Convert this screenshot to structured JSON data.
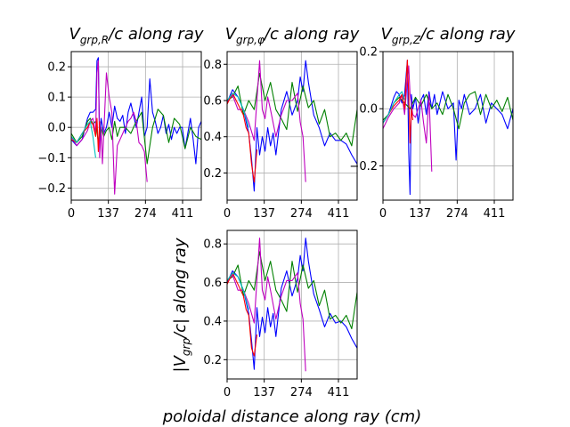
{
  "figure": {
    "xlabel": "poloidal distance along ray  (cm)",
    "ylabel_bottom": "|V_grp/c|  along ray"
  },
  "colors": {
    "blue": "#0000ff",
    "green": "#008000",
    "magenta": "#bf00bf",
    "red": "#ff0000",
    "cyan": "#00bfbf"
  },
  "chart_data": [
    {
      "type": "line",
      "title": "V_grp,R/c  along ray",
      "xlim": [
        0,
        480
      ],
      "ylim": [
        -0.24,
        0.25
      ],
      "xticks": [
        0,
        137,
        274,
        411
      ],
      "xtick_labels": [
        "0",
        "137",
        "274",
        "411"
      ],
      "yticks": [
        -0.2,
        -0.1,
        0.0,
        0.1,
        0.2
      ],
      "ytick_labels": [
        "−0.2",
        "−0.1",
        "0.0",
        "0.1",
        "0.2"
      ],
      "grid": true,
      "series": [
        {
          "color": "#0000ff",
          "x": [
            0,
            20,
            40,
            60,
            70,
            80,
            90,
            95,
            100,
            105,
            110,
            120,
            130,
            140,
            150,
            160,
            170,
            180,
            190,
            200,
            210,
            220,
            240,
            260,
            270,
            280,
            290,
            300,
            310,
            320,
            330,
            340,
            350,
            360,
            370,
            380,
            390,
            400,
            410,
            420,
            430,
            440,
            450,
            460,
            470,
            480
          ],
          "y": [
            -0.04,
            -0.06,
            -0.04,
            0.03,
            0.05,
            0.05,
            0.06,
            0.22,
            0.23,
            -0.05,
            0.03,
            -0.02,
            0.0,
            0.05,
            0.0,
            0.07,
            0.03,
            0.02,
            0.04,
            -0.02,
            0.05,
            0.08,
            0.0,
            0.1,
            -0.03,
            0.0,
            0.16,
            0.05,
            0.02,
            -0.02,
            0.0,
            0.04,
            -0.02,
            0.01,
            -0.04,
            0.0,
            -0.02,
            0.0,
            0.0,
            -0.07,
            -0.02,
            0.03,
            -0.04,
            -0.12,
            0.0,
            0.02
          ]
        },
        {
          "color": "#008000",
          "x": [
            0,
            20,
            40,
            60,
            70,
            80,
            90,
            100,
            110,
            120,
            130,
            140,
            150,
            160,
            170,
            180,
            190,
            200,
            220,
            240,
            260,
            280,
            300,
            320,
            340,
            360,
            380,
            400,
            420,
            440,
            460,
            480
          ],
          "y": [
            -0.02,
            -0.05,
            -0.03,
            0.02,
            0.03,
            0.01,
            0.02,
            -0.05,
            0.0,
            -0.03,
            -0.01,
            0.0,
            -0.04,
            0.02,
            -0.03,
            0.0,
            0.0,
            0.0,
            -0.02,
            0.02,
            0.05,
            -0.12,
            0.0,
            0.06,
            0.04,
            -0.05,
            0.03,
            0.01,
            -0.07,
            0.0,
            -0.03,
            -0.04
          ]
        },
        {
          "color": "#bf00bf",
          "x": [
            0,
            20,
            40,
            60,
            70,
            80,
            90,
            95,
            100,
            105,
            110,
            115,
            120,
            130,
            140,
            150,
            160,
            170,
            180,
            190,
            200,
            210,
            220,
            230,
            240,
            250,
            260,
            270,
            280
          ],
          "y": [
            -0.03,
            -0.06,
            -0.04,
            -0.01,
            0.02,
            0.03,
            -0.02,
            0.18,
            0.22,
            -0.1,
            0.0,
            -0.12,
            -0.02,
            0.18,
            0.1,
            0.05,
            -0.22,
            -0.06,
            -0.04,
            -0.02,
            0.0,
            0.02,
            0.03,
            0.05,
            0.02,
            -0.05,
            -0.06,
            -0.08,
            -0.18
          ]
        },
        {
          "color": "#ff0000",
          "x": [
            0,
            20,
            40,
            60,
            70,
            80,
            90,
            95,
            100,
            105
          ],
          "y": [
            -0.04,
            -0.05,
            -0.02,
            0.0,
            0.02,
            0.01,
            -0.03,
            0.03,
            -0.08,
            0.02
          ]
        },
        {
          "color": "#00bfbf",
          "x": [
            0,
            20,
            40,
            60,
            70,
            80,
            90
          ],
          "y": [
            -0.03,
            -0.05,
            -0.02,
            0.01,
            0.02,
            -0.03,
            -0.1
          ]
        }
      ]
    },
    {
      "type": "line",
      "title": "V_grp,φ/c  along ray",
      "xlim": [
        0,
        480
      ],
      "ylim": [
        0.05,
        0.87
      ],
      "xticks": [
        0,
        137,
        274,
        411
      ],
      "xtick_labels": [
        "0",
        "137",
        "274",
        "411"
      ],
      "yticks": [
        0.2,
        0.4,
        0.6,
        0.8
      ],
      "ytick_labels": [
        "0.2",
        "0.4",
        "0.6",
        "0.8"
      ],
      "grid": true,
      "series": [
        {
          "color": "#0000ff",
          "x": [
            0,
            20,
            40,
            60,
            80,
            90,
            100,
            110,
            120,
            130,
            140,
            150,
            160,
            170,
            180,
            200,
            220,
            240,
            260,
            270,
            280,
            290,
            300,
            320,
            340,
            360,
            380,
            400,
            420,
            440,
            460,
            480
          ],
          "y": [
            0.59,
            0.66,
            0.62,
            0.55,
            0.42,
            0.28,
            0.1,
            0.45,
            0.3,
            0.4,
            0.32,
            0.45,
            0.35,
            0.42,
            0.3,
            0.55,
            0.65,
            0.52,
            0.6,
            0.73,
            0.65,
            0.82,
            0.7,
            0.52,
            0.45,
            0.35,
            0.42,
            0.38,
            0.38,
            0.36,
            0.3,
            0.25
          ]
        },
        {
          "color": "#008000",
          "x": [
            0,
            20,
            40,
            60,
            80,
            100,
            120,
            140,
            160,
            180,
            200,
            220,
            240,
            260,
            280,
            300,
            320,
            340,
            360,
            380,
            400,
            420,
            440,
            460,
            480
          ],
          "y": [
            0.6,
            0.62,
            0.68,
            0.52,
            0.6,
            0.55,
            0.75,
            0.6,
            0.7,
            0.55,
            0.5,
            0.44,
            0.7,
            0.54,
            0.68,
            0.56,
            0.6,
            0.47,
            0.55,
            0.4,
            0.42,
            0.38,
            0.42,
            0.35,
            0.55
          ]
        },
        {
          "color": "#bf00bf",
          "x": [
            0,
            20,
            40,
            60,
            80,
            100,
            120,
            130,
            140,
            150,
            160,
            180,
            200,
            220,
            240,
            260,
            270,
            280,
            290
          ],
          "y": [
            0.59,
            0.63,
            0.55,
            0.55,
            0.48,
            0.38,
            0.82,
            0.55,
            0.5,
            0.62,
            0.55,
            0.4,
            0.52,
            0.6,
            0.6,
            0.64,
            0.48,
            0.4,
            0.15
          ]
        },
        {
          "color": "#ff0000",
          "x": [
            0,
            20,
            40,
            60,
            70,
            80,
            90,
            100,
            110
          ],
          "y": [
            0.58,
            0.64,
            0.58,
            0.52,
            0.45,
            0.42,
            0.25,
            0.15,
            0.33
          ]
        },
        {
          "color": "#00bfbf",
          "x": [
            0,
            20,
            40,
            60,
            80
          ],
          "y": [
            0.6,
            0.64,
            0.62,
            0.55,
            0.45
          ]
        }
      ]
    },
    {
      "type": "line",
      "title": "V_grp,Z/c  along ray",
      "xlim": [
        0,
        480
      ],
      "ylim": [
        -0.32,
        0.2
      ],
      "xticks": [
        0,
        137,
        274,
        411
      ],
      "xtick_labels": [
        "0",
        "137",
        "274",
        "411"
      ],
      "yticks": [
        -0.2,
        0.0,
        0.2
      ],
      "ytick_labels": [
        "−0.2",
        "0.0",
        "0.2"
      ],
      "grid": true,
      "series": [
        {
          "color": "#0000ff",
          "x": [
            0,
            20,
            40,
            50,
            60,
            70,
            80,
            90,
            95,
            100,
            105,
            110,
            120,
            130,
            140,
            150,
            160,
            170,
            180,
            190,
            200,
            210,
            220,
            240,
            260,
            270,
            280,
            290,
            300,
            320,
            340,
            360,
            380,
            400,
            420,
            440,
            460,
            480
          ],
          "y": [
            -0.05,
            -0.02,
            0.04,
            0.06,
            0.05,
            0.02,
            0.05,
            0.17,
            -0.15,
            -0.3,
            0.05,
            0.0,
            0.04,
            -0.05,
            0.03,
            0.05,
            -0.02,
            0.06,
            0.0,
            0.05,
            -0.02,
            0.02,
            0.06,
            0.0,
            0.02,
            -0.18,
            0.03,
            0.0,
            0.05,
            -0.02,
            0.0,
            0.05,
            -0.05,
            0.02,
            0.0,
            -0.02,
            -0.07,
            0.0
          ]
        },
        {
          "color": "#008000",
          "x": [
            0,
            20,
            40,
            60,
            80,
            100,
            120,
            140,
            160,
            180,
            200,
            220,
            240,
            260,
            280,
            300,
            320,
            340,
            360,
            380,
            400,
            420,
            440,
            460,
            480
          ],
          "y": [
            -0.04,
            -0.02,
            0.02,
            0.04,
            0.02,
            0.0,
            0.04,
            0.01,
            0.05,
            0.0,
            0.02,
            -0.02,
            0.05,
            0.0,
            -0.07,
            0.02,
            0.05,
            0.06,
            -0.02,
            0.05,
            0.0,
            0.03,
            -0.01,
            0.04,
            -0.04
          ]
        },
        {
          "color": "#bf00bf",
          "x": [
            0,
            20,
            40,
            60,
            70,
            80,
            90,
            95,
            100,
            110,
            120,
            130,
            140,
            150,
            160,
            170,
            180
          ],
          "y": [
            -0.07,
            -0.03,
            0.0,
            0.02,
            0.05,
            -0.02,
            0.1,
            0.15,
            0.05,
            -0.02,
            -0.03,
            0.0,
            0.03,
            -0.05,
            -0.12,
            0.05,
            -0.22
          ]
        },
        {
          "color": "#ff0000",
          "x": [
            0,
            20,
            40,
            60,
            70,
            80,
            90,
            95,
            100,
            105,
            110
          ],
          "y": [
            -0.05,
            -0.02,
            0.01,
            0.03,
            0.05,
            0.0,
            0.17,
            0.05,
            -0.12,
            0.0,
            -0.04
          ]
        },
        {
          "color": "#00bfbf",
          "x": [
            0,
            20,
            40,
            60,
            70,
            80
          ],
          "y": [
            -0.05,
            -0.02,
            0.02,
            0.05,
            0.06,
            0.03
          ]
        }
      ]
    },
    {
      "type": "line",
      "title": "",
      "xlim": [
        0,
        480
      ],
      "ylim": [
        0.1,
        0.87
      ],
      "xticks": [
        0,
        137,
        274,
        411
      ],
      "xtick_labels": [
        "0",
        "137",
        "274",
        "411"
      ],
      "yticks": [
        0.2,
        0.4,
        0.6,
        0.8
      ],
      "ytick_labels": [
        "0.2",
        "0.4",
        "0.6",
        "0.8"
      ],
      "grid": true,
      "series": [
        {
          "color": "#0000ff",
          "x": [
            0,
            20,
            40,
            60,
            80,
            90,
            100,
            110,
            120,
            130,
            140,
            150,
            160,
            170,
            180,
            200,
            220,
            240,
            260,
            270,
            280,
            290,
            300,
            320,
            340,
            360,
            380,
            400,
            420,
            440,
            460,
            480
          ],
          "y": [
            0.6,
            0.66,
            0.63,
            0.56,
            0.44,
            0.3,
            0.15,
            0.47,
            0.32,
            0.42,
            0.34,
            0.47,
            0.37,
            0.44,
            0.32,
            0.57,
            0.66,
            0.53,
            0.62,
            0.74,
            0.66,
            0.83,
            0.71,
            0.54,
            0.46,
            0.37,
            0.44,
            0.39,
            0.4,
            0.37,
            0.31,
            0.26
          ]
        },
        {
          "color": "#008000",
          "x": [
            0,
            20,
            40,
            60,
            80,
            100,
            120,
            140,
            160,
            180,
            200,
            220,
            240,
            260,
            280,
            300,
            320,
            340,
            360,
            380,
            400,
            420,
            440,
            460,
            480
          ],
          "y": [
            0.61,
            0.63,
            0.69,
            0.53,
            0.61,
            0.56,
            0.76,
            0.61,
            0.71,
            0.56,
            0.51,
            0.45,
            0.71,
            0.55,
            0.69,
            0.57,
            0.61,
            0.48,
            0.56,
            0.41,
            0.43,
            0.39,
            0.43,
            0.36,
            0.55
          ]
        },
        {
          "color": "#bf00bf",
          "x": [
            0,
            20,
            40,
            60,
            80,
            100,
            120,
            130,
            140,
            150,
            160,
            180,
            200,
            220,
            240,
            260,
            270,
            280,
            290
          ],
          "y": [
            0.6,
            0.64,
            0.56,
            0.56,
            0.49,
            0.39,
            0.83,
            0.56,
            0.51,
            0.63,
            0.56,
            0.41,
            0.53,
            0.61,
            0.61,
            0.65,
            0.49,
            0.41,
            0.14
          ]
        },
        {
          "color": "#ff0000",
          "x": [
            0,
            20,
            40,
            60,
            70,
            80,
            90,
            100,
            110
          ],
          "y": [
            0.59,
            0.65,
            0.59,
            0.53,
            0.46,
            0.43,
            0.26,
            0.22,
            0.33
          ]
        },
        {
          "color": "#00bfbf",
          "x": [
            0,
            20,
            40,
            60,
            80
          ],
          "y": [
            0.61,
            0.65,
            0.63,
            0.56,
            0.46
          ]
        }
      ]
    }
  ]
}
